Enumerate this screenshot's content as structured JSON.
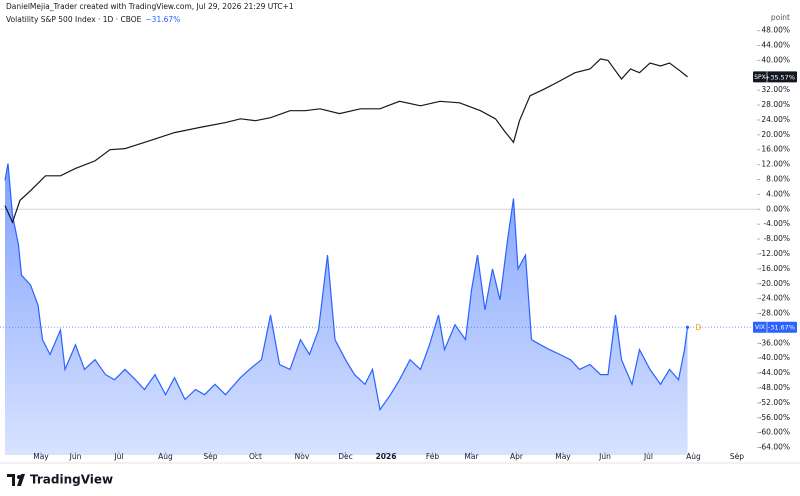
{
  "header": {
    "credit": "DanielMejia_Trader created with TradingView.com, Jul 29, 2026 21:29 UTC+1",
    "symbol": "Volatility S&P 500 Index · 1D · CBOE",
    "change": "−31.67%"
  },
  "logo": "TradingView",
  "chart_data": {
    "type": "line",
    "y_unit": "point",
    "marker": "D",
    "xlim": [
      0,
      500
    ],
    "ylim": [
      -66,
      53
    ],
    "zero_line": true,
    "grid": false,
    "xticks": [
      {
        "value": 24,
        "label": "May"
      },
      {
        "value": 47,
        "label": "Jun"
      },
      {
        "value": 76,
        "label": "Jul"
      },
      {
        "value": 107,
        "label": "Aug"
      },
      {
        "value": 137,
        "label": "Sep"
      },
      {
        "value": 167,
        "label": "Oct"
      },
      {
        "value": 198,
        "label": "Nov"
      },
      {
        "value": 227,
        "label": "Dec"
      },
      {
        "value": 254,
        "label": "2026"
      },
      {
        "value": 285,
        "label": "Feb"
      },
      {
        "value": 311,
        "label": "Mar"
      },
      {
        "value": 341,
        "label": "Apr"
      },
      {
        "value": 372,
        "label": "May"
      },
      {
        "value": 400,
        "label": "Jun"
      },
      {
        "value": 429,
        "label": "Jul"
      },
      {
        "value": 459,
        "label": "Aug"
      },
      {
        "value": 488,
        "label": "Sep"
      }
    ],
    "yticks": [
      {
        "value": 48,
        "label": "48.00%"
      },
      {
        "value": 44,
        "label": "44.00%"
      },
      {
        "value": 40,
        "label": "40.00%"
      },
      {
        "value": 36,
        "label": "36.00%"
      },
      {
        "value": 32,
        "label": "32.00%"
      },
      {
        "value": 28,
        "label": "28.00%"
      },
      {
        "value": 24,
        "label": "24.00%"
      },
      {
        "value": 20,
        "label": "20.00%"
      },
      {
        "value": 16,
        "label": "16.00%"
      },
      {
        "value": 12,
        "label": "12.00%"
      },
      {
        "value": 8,
        "label": "8.00%"
      },
      {
        "value": 4,
        "label": "4.00%"
      },
      {
        "value": 0,
        "label": "0.00%"
      },
      {
        "value": -4,
        "label": "-4.00%"
      },
      {
        "value": -8,
        "label": "-8.00%"
      },
      {
        "value": -12,
        "label": "-12.00%"
      },
      {
        "value": -16,
        "label": "-16.00%"
      },
      {
        "value": -20,
        "label": "-20.00%"
      },
      {
        "value": -24,
        "label": "-24.00%"
      },
      {
        "value": -28,
        "label": "-28.00%"
      },
      {
        "value": -32,
        "label": "-32.00%"
      },
      {
        "value": -36,
        "label": "-36.00%"
      },
      {
        "value": -40,
        "label": "-40.00%"
      },
      {
        "value": -44,
        "label": "-44.00%"
      },
      {
        "value": -48,
        "label": "-48.00%"
      },
      {
        "value": -52,
        "label": "-52.00%"
      },
      {
        "value": -56,
        "label": "-56.00%"
      },
      {
        "value": -60,
        "label": "-60.00%"
      },
      {
        "value": -64,
        "label": "-64.00%"
      }
    ],
    "series": [
      {
        "name": "SPX",
        "color": "#131722",
        "area": false,
        "end_label": "+35.57%",
        "x": [
          0,
          5,
          10,
          17,
          27,
          37,
          47,
          60,
          70,
          80,
          97,
          113,
          130,
          147,
          157,
          167,
          177,
          190,
          200,
          210,
          223,
          237,
          250,
          263,
          277,
          290,
          303,
          317,
          327,
          333,
          339,
          343,
          350,
          360,
          370,
          380,
          390,
          397,
          402,
          407,
          411,
          417,
          423,
          430,
          437,
          443,
          450,
          455
        ],
        "values": [
          1,
          -3.5,
          2.4,
          5,
          9,
          9,
          11,
          13,
          16,
          16.3,
          18.5,
          20.6,
          22,
          23.3,
          24.3,
          23.8,
          24.6,
          26.5,
          26.5,
          27,
          25.7,
          27,
          27,
          29,
          27.8,
          29,
          28.6,
          26.5,
          24.3,
          21,
          18,
          23.8,
          30.5,
          32.4,
          34.5,
          36.7,
          37.7,
          40.4,
          40,
          37.2,
          35,
          37.7,
          36.7,
          39.3,
          38.5,
          39.3,
          37.2,
          35.57
        ]
      },
      {
        "name": "VIX",
        "color": "#2962ff",
        "area": true,
        "end_label": "-31.67%",
        "x": [
          0,
          2,
          5,
          9,
          11,
          17,
          22,
          25,
          30,
          37,
          40,
          47,
          53,
          60,
          67,
          73,
          80,
          87,
          93,
          100,
          107,
          113,
          120,
          127,
          133,
          140,
          147,
          157,
          163,
          171,
          177,
          183,
          190,
          197,
          203,
          209,
          215,
          220,
          227,
          233,
          240,
          245,
          250,
          257,
          263,
          270,
          277,
          283,
          289,
          293,
          300,
          307,
          311,
          315,
          320,
          325,
          330,
          335,
          339,
          342,
          347,
          351,
          357,
          363,
          370,
          377,
          383,
          390,
          397,
          402,
          407,
          411,
          418,
          423,
          430,
          437,
          443,
          449,
          453,
          455
        ],
        "values": [
          7.8,
          12.3,
          -1.6,
          -9.6,
          -17.7,
          -20.3,
          -25.7,
          -35,
          -39,
          -32.4,
          -43,
          -36.4,
          -43,
          -40.4,
          -44.4,
          -45.8,
          -43,
          -45.8,
          -48.4,
          -44.4,
          -49.8,
          -45.2,
          -51.1,
          -48.4,
          -49.8,
          -47,
          -49.8,
          -45.2,
          -43,
          -40.4,
          -28.4,
          -41.7,
          -43,
          -35,
          -39,
          -32.4,
          -12.3,
          -35,
          -40.4,
          -44.4,
          -47,
          -43,
          -53.8,
          -49.8,
          -45.8,
          -40.4,
          -43,
          -36.4,
          -28.4,
          -37.7,
          -31,
          -35,
          -21.7,
          -12.3,
          -27,
          -16,
          -24.3,
          -8.3,
          2.9,
          -16,
          -12.3,
          -35,
          -36.4,
          -37.7,
          -39,
          -40.4,
          -43,
          -41.7,
          -44.4,
          -44.4,
          -28.4,
          -40.4,
          -47,
          -37.7,
          -43,
          -47,
          -43,
          -45.8,
          -37.7,
          -31.67
        ]
      }
    ]
  }
}
